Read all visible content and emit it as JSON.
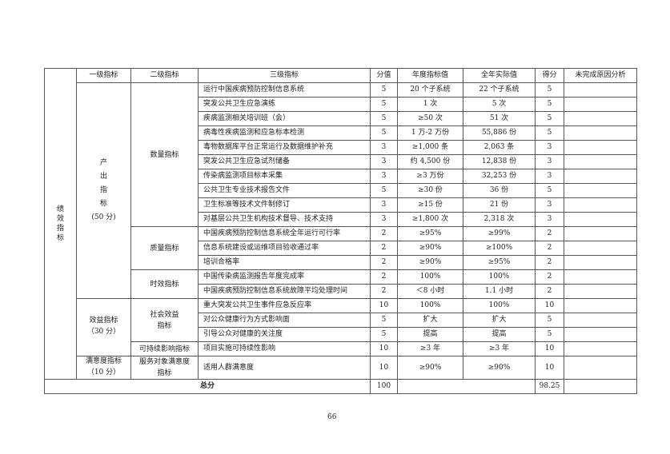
{
  "header": [
    "一级指标",
    "二级指标",
    "三级指标",
    "分值",
    "年度指标值",
    "全年实际值",
    "得分",
    "未完成原因分析"
  ],
  "outer_label": "绩效指标",
  "level1": [
    {
      "label": "产出指标",
      "score": "(50 分)",
      "start": 0,
      "span": 15,
      "vertical": true
    },
    {
      "label": "效益指标",
      "score": "（30 分）",
      "start": 15,
      "span": 4
    },
    {
      "label": "满意度指标",
      "score": "（10 分）",
      "start": 19,
      "span": 1
    }
  ],
  "level2": [
    {
      "label": "数量指标",
      "start": 0,
      "span": 10
    },
    {
      "label": "质量指标",
      "start": 10,
      "span": 3
    },
    {
      "label": "时效指标",
      "start": 13,
      "span": 2
    },
    {
      "label": "社会效益\n指标",
      "start": 15,
      "span": 3
    },
    {
      "label": "可持续影响指标",
      "start": 18,
      "span": 1
    },
    {
      "label": "服务对象满意度\n指标",
      "start": 19,
      "span": 1
    }
  ],
  "rows": [
    {
      "indicator": "运行中国疾病预防控制信息系统",
      "weight": "5",
      "target": "20 个子系统",
      "actual": "22 个子系统",
      "score": "5",
      "reason": ""
    },
    {
      "indicator": "突发公共卫生应急演练",
      "weight": "5",
      "target": "1 次",
      "actual": "5 次",
      "score": "5",
      "reason": ""
    },
    {
      "indicator": "疾病监测相关培训班（会）",
      "weight": "5",
      "target": "≥50 次",
      "actual": "51 次",
      "score": "5",
      "reason": ""
    },
    {
      "indicator": "病毒性疾病监测和应急标本检测",
      "weight": "5",
      "target": "1 万-2 万份",
      "actual": "55,886 份",
      "score": "5",
      "reason": ""
    },
    {
      "indicator": "毒物数据库平台正常运行及数据维护补充",
      "weight": "3",
      "target": "≥1,000 条",
      "actual": "2,063 条",
      "score": "3",
      "reason": ""
    },
    {
      "indicator": "突发公共卫生应急试剂储备",
      "weight": "3",
      "target": "约 4,500 份",
      "actual": "12,838 份",
      "score": "3",
      "reason": ""
    },
    {
      "indicator": "传染病监测项目标本采集",
      "weight": "3",
      "target": "≥3 万份",
      "actual": "32,253 份",
      "score": "3",
      "reason": ""
    },
    {
      "indicator": "公共卫生专业技术报告文件",
      "weight": "5",
      "target": "≥30 份",
      "actual": "36 份",
      "score": "5",
      "reason": ""
    },
    {
      "indicator": "卫生标准等技术文件制修订",
      "weight": "3",
      "target": "≥15 份",
      "actual": "21 份",
      "score": "3",
      "reason": ""
    },
    {
      "indicator": "对基层公共卫生机构技术督导、技术支持",
      "weight": "3",
      "target": "≥1,800 次",
      "actual": "2,318 次",
      "score": "3",
      "reason": ""
    },
    {
      "indicator": "中国疾病预防控制信息系统全年运行可行率",
      "weight": "2",
      "target": "≥95%",
      "actual": "≥99%",
      "score": "2",
      "reason": ""
    },
    {
      "indicator": "信息系统建设或运维项目验收通过率",
      "weight": "2",
      "target": "≥90%",
      "actual": "≥100%",
      "score": "2",
      "reason": ""
    },
    {
      "indicator": "培训合格率",
      "weight": "2",
      "target": "≥90%",
      "actual": "≥95%",
      "score": "2",
      "reason": ""
    },
    {
      "indicator": "中国传染病监测报告年度完成率",
      "weight": "2",
      "target": "100%",
      "actual": "100%",
      "score": "2",
      "reason": ""
    },
    {
      "indicator": "中国疾病预防控制信息系统故障平均处理时间",
      "weight": "2",
      "target": "＜8 小时",
      "actual": "1.1 小时",
      "score": "2",
      "reason": ""
    },
    {
      "indicator": "重大突发公共卫生事件应急反应率",
      "weight": "10",
      "target": "100%",
      "actual": "100%",
      "score": "10",
      "reason": ""
    },
    {
      "indicator": "对公众健康行为方式影响面",
      "weight": "5",
      "target": "扩大",
      "actual": "扩大",
      "score": "5",
      "reason": ""
    },
    {
      "indicator": "引导公众对健康的关注度",
      "weight": "5",
      "target": "提高",
      "actual": "提高",
      "score": "5",
      "reason": ""
    },
    {
      "indicator": "项目实施可持续性影响",
      "weight": "10",
      "target": "≥3 年",
      "actual": "≥3 年",
      "score": "10",
      "reason": ""
    },
    {
      "indicator": "适用人群满意度",
      "weight": "10",
      "target": "≥90%",
      "actual": "≥90%",
      "score": "10",
      "reason": ""
    }
  ],
  "total": {
    "label": "总分",
    "weight": "100",
    "score": "98.25"
  },
  "page_number": "66"
}
